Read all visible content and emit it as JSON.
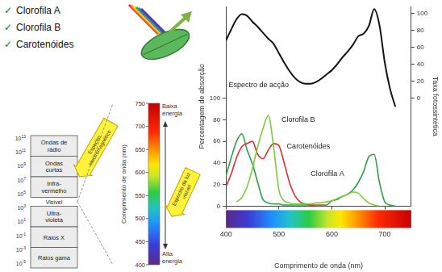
{
  "bullets": {
    "symbol": "✓",
    "items": [
      "Clorofila A",
      "Clorofila B",
      "Carotenóides"
    ]
  },
  "electromagnetic_spectrum": {
    "arrow_label": "Espectro electromagnético",
    "scale_base": 10,
    "scale_exponents": [
      13,
      11,
      9,
      7,
      5,
      3,
      1,
      -1,
      -3,
      -5
    ],
    "bands": [
      {
        "label": "Ondas de rádio",
        "boxed": true
      },
      {
        "label": "Ondas curtas",
        "boxed": true
      },
      {
        "label": "Infra-vermelho",
        "boxed": true
      },
      {
        "label": "Visível",
        "boxed": false
      },
      {
        "label": "Ultra-violeta",
        "boxed": true
      },
      {
        "label": "Raios X",
        "boxed": true
      },
      {
        "label": "Raios gama",
        "boxed": true
      }
    ]
  },
  "visible_spectrum": {
    "arrow_label": "Espectro da luz visível",
    "axis_label": "Comprimento de onda (nm)",
    "ylim": [
      400,
      750
    ],
    "yticks": [
      400,
      450,
      500,
      550,
      600,
      650,
      700,
      750
    ],
    "top_label": "Baixa energia",
    "bottom_label": "Alta energia"
  },
  "chart_data": {
    "type": "line",
    "x_label": "Comprimento de onda (nm)",
    "y_label": "Percentagem de absorção",
    "y2_label": "Taxa fotossintética",
    "x": [
      400,
      410,
      420,
      430,
      440,
      450,
      460,
      470,
      480,
      490,
      500,
      510,
      520,
      530,
      540,
      550,
      560,
      570,
      580,
      590,
      600,
      610,
      620,
      630,
      640,
      650,
      660,
      670,
      680,
      690,
      700,
      710,
      720
    ],
    "xlim": [
      400,
      750
    ],
    "xticks": [
      400,
      500,
      600,
      700
    ],
    "ylim": [
      0,
      185
    ],
    "yticks": [
      0,
      20,
      40,
      60,
      80,
      100
    ],
    "y2lim": [
      -127,
      108
    ],
    "y2ticks": [
      0,
      20,
      40,
      60,
      80,
      100
    ],
    "grid": false,
    "series": [
      {
        "name": "Espectro de acção",
        "color": "#111111",
        "axis": "y2",
        "label_at": [
          405,
          15
        ],
        "values": [
          68,
          81,
          93,
          99,
          97,
          90,
          84,
          77,
          70,
          64,
          53,
          42,
          32,
          24,
          19,
          17,
          17,
          19,
          23,
          28,
          33,
          40,
          48,
          55,
          63,
          73,
          76,
          85,
          105,
          86,
          42,
          11,
          -10
        ]
      },
      {
        "name": "Clorofila B",
        "color": "#7ccc3c",
        "label_at": [
          505,
          80
        ],
        "values": [
          null,
          null,
          4,
          8,
          18,
          35,
          55,
          72,
          84,
          55,
          15,
          5,
          3,
          2,
          2,
          2,
          2,
          3,
          3,
          4,
          5,
          7,
          9,
          11,
          13,
          12,
          7,
          3,
          1,
          0,
          null,
          null,
          null
        ]
      },
      {
        "name": "Carotenóides",
        "color": "#e03030",
        "label_at": [
          515,
          55
        ],
        "values": [
          18,
          30,
          45,
          55,
          58,
          60,
          48,
          44,
          52,
          58,
          56,
          40,
          22,
          10,
          4,
          2,
          1,
          0,
          0,
          0,
          null,
          null,
          null,
          null,
          null,
          null,
          null,
          null,
          null,
          null,
          null,
          null,
          null
        ]
      },
      {
        "name": "Clorofila A",
        "color": "#2e9e48",
        "label_at": [
          560,
          30
        ],
        "values": [
          28,
          45,
          60,
          67,
          52,
          39,
          22,
          6,
          3,
          2,
          2,
          1,
          1,
          1,
          1,
          1,
          1,
          1,
          1,
          1,
          5,
          6,
          9,
          11,
          15,
          22,
          32,
          46,
          48,
          22,
          4,
          1,
          0
        ]
      }
    ]
  }
}
